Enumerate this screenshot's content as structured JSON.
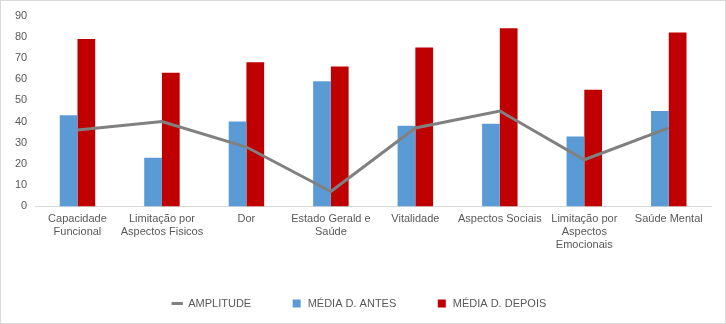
{
  "chart_data": {
    "type": "bar",
    "categories": [
      "Capacidade Funcional",
      "Limitação por Aspectos Fisicos",
      "Dor",
      "Estado Gerald e Saúde",
      "Vitalidade",
      "Aspectos Sociais",
      "Limitação por Aspectos Emocionais",
      "Saúde Mental"
    ],
    "series": [
      {
        "name": "MÉDIA D. ANTES",
        "color": "#5b9bd5",
        "type": "bar",
        "values": [
          43,
          23,
          40,
          59,
          38,
          39,
          33,
          45
        ]
      },
      {
        "name": "MÉDIA D. DEPOIS",
        "color": "#c00000",
        "type": "bar",
        "values": [
          79,
          63,
          68,
          66,
          75,
          84,
          55,
          82
        ]
      },
      {
        "name": "AMPLITUDE",
        "color": "#808080",
        "type": "line",
        "values": [
          36,
          40,
          28,
          7,
          37,
          45,
          22,
          37
        ]
      }
    ],
    "ylim": [
      0,
      90
    ],
    "yticks": [
      0,
      10,
      20,
      30,
      40,
      50,
      60,
      70,
      80,
      90
    ],
    "grid": false,
    "legend": "bottom"
  }
}
